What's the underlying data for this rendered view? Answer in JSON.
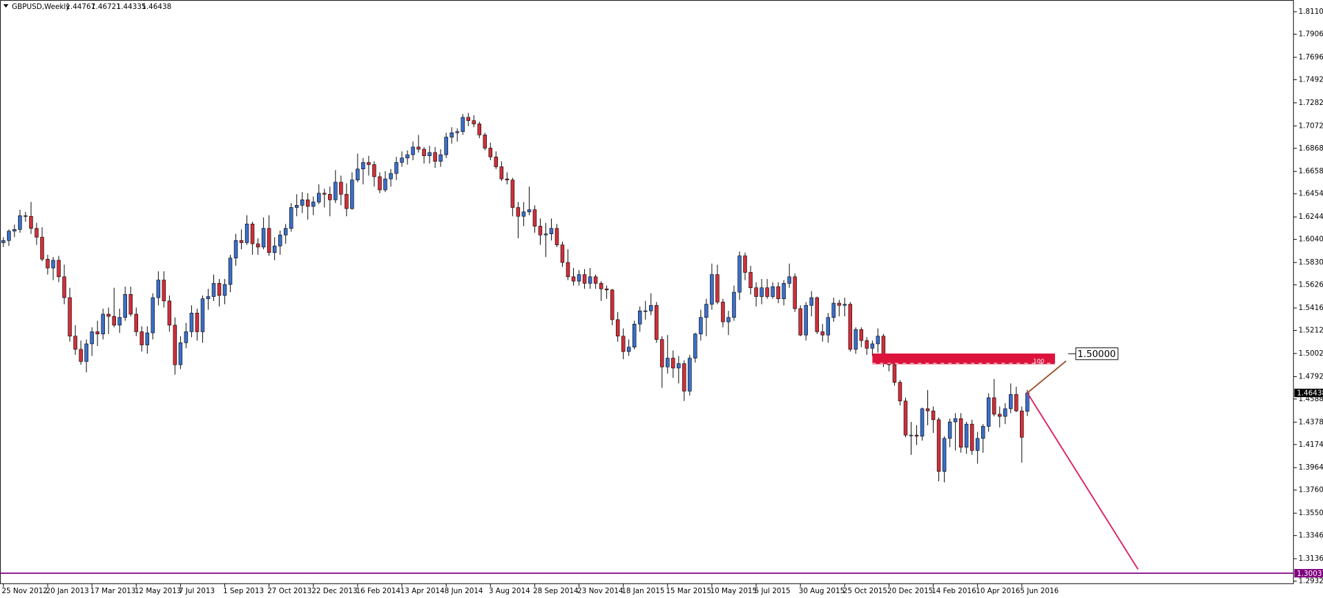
{
  "chart_data": {
    "type": "candlestick",
    "title": "GBPUSD,Weekly",
    "up_color": "#3b6fc9",
    "down_color": "#d0303a",
    "wick_color": "#000000",
    "ylim": [
      1.2909,
      1.8217
    ],
    "yticks": [
      {
        "value": 1.811,
        "label": "1.81100"
      },
      {
        "value": 1.7906,
        "label": "1.79060"
      },
      {
        "value": 1.7696,
        "label": "1.76960"
      },
      {
        "value": 1.7492,
        "label": "1.74920"
      },
      {
        "value": 1.7282,
        "label": "1.72820"
      },
      {
        "value": 1.7072,
        "label": "1.70720"
      },
      {
        "value": 1.6868,
        "label": "1.68680"
      },
      {
        "value": 1.6658,
        "label": "1.66580"
      },
      {
        "value": 1.6454,
        "label": "1.64540"
      },
      {
        "value": 1.6244,
        "label": "1.62440"
      },
      {
        "value": 1.604,
        "label": "1.60400"
      },
      {
        "value": 1.583,
        "label": "1.58300"
      },
      {
        "value": 1.5626,
        "label": "1.56260"
      },
      {
        "value": 1.5416,
        "label": "1.54160"
      },
      {
        "value": 1.5212,
        "label": "1.52120"
      },
      {
        "value": 1.5002,
        "label": "1.50020"
      },
      {
        "value": 1.4792,
        "label": "1.47920"
      },
      {
        "value": 1.4588,
        "label": "1.45880"
      },
      {
        "value": 1.4378,
        "label": "1.43780"
      },
      {
        "value": 1.4174,
        "label": "1.41740"
      },
      {
        "value": 1.3964,
        "label": "1.39640"
      },
      {
        "value": 1.376,
        "label": "1.37600"
      },
      {
        "value": 1.355,
        "label": "1.35500"
      },
      {
        "value": 1.3346,
        "label": "1.33460"
      },
      {
        "value": 1.3136,
        "label": "1.31360"
      },
      {
        "value": 1.2932,
        "label": "1.29320"
      }
    ],
    "categories": [
      "25 Nov 2012",
      null,
      null,
      null,
      null,
      null,
      null,
      null,
      "20 Jan 2013",
      null,
      null,
      null,
      null,
      null,
      null,
      null,
      "17 Mar 2013",
      null,
      null,
      null,
      null,
      null,
      null,
      null,
      "12 May 2013",
      null,
      null,
      null,
      null,
      null,
      null,
      null,
      "7 Jul 2013",
      null,
      null,
      null,
      null,
      null,
      null,
      null,
      "1 Sep 2013",
      null,
      null,
      null,
      null,
      null,
      null,
      null,
      "27 Oct 2013",
      null,
      null,
      null,
      null,
      null,
      null,
      null,
      "22 Dec 2013",
      null,
      null,
      null,
      null,
      null,
      null,
      null,
      "16 Feb 2014",
      null,
      null,
      null,
      null,
      null,
      null,
      null,
      "13 Apr 2014",
      null,
      null,
      null,
      null,
      null,
      null,
      null,
      "8 Jun 2014",
      null,
      null,
      null,
      null,
      null,
      null,
      null,
      "3 Aug 2014",
      null,
      null,
      null,
      null,
      null,
      null,
      null,
      "28 Sep 2014",
      null,
      null,
      null,
      null,
      null,
      null,
      null,
      "23 Nov 2014",
      null,
      null,
      null,
      null,
      null,
      null,
      null,
      "18 Jan 2015",
      null,
      null,
      null,
      null,
      null,
      null,
      null,
      "15 Mar 2015",
      null,
      null,
      null,
      null,
      null,
      null,
      null,
      "10 May 2015",
      null,
      null,
      null,
      null,
      null,
      null,
      null,
      "5 Jul 2015",
      null,
      null,
      null,
      null,
      null,
      null,
      null,
      "30 Aug 2015",
      null,
      null,
      null,
      null,
      null,
      null,
      null,
      "25 Oct 2015",
      null,
      null,
      null,
      null,
      null,
      null,
      null,
      "20 Dec 2015",
      null,
      null,
      null,
      null,
      null,
      null,
      null,
      "14 Feb 2016",
      null,
      null,
      null,
      null,
      null,
      null,
      null,
      "10 Apr 2016",
      null,
      null,
      null,
      null,
      null,
      null,
      null,
      "5 Jun 2016",
      null
    ],
    "ohlc": [
      [
        1.601,
        1.606,
        1.597,
        1.603
      ],
      [
        1.603,
        1.613,
        1.598,
        1.6115
      ],
      [
        1.6115,
        1.6175,
        1.606,
        1.613
      ],
      [
        1.613,
        1.631,
        1.61,
        1.6255
      ],
      [
        1.6255,
        1.629,
        1.62,
        1.625
      ],
      [
        1.625,
        1.638,
        1.609,
        1.614
      ],
      [
        1.614,
        1.619,
        1.599,
        1.606
      ],
      [
        1.606,
        1.615,
        1.584,
        1.586
      ],
      [
        1.586,
        1.59,
        1.572,
        1.578
      ],
      [
        1.578,
        1.588,
        1.567,
        1.585
      ],
      [
        1.585,
        1.589,
        1.565,
        1.57
      ],
      [
        1.57,
        1.581,
        1.545,
        1.551
      ],
      [
        1.551,
        1.56,
        1.511,
        1.516
      ],
      [
        1.516,
        1.526,
        1.499,
        1.504
      ],
      [
        1.504,
        1.512,
        1.49,
        1.493
      ],
      [
        1.493,
        1.513,
        1.483,
        1.509
      ],
      [
        1.509,
        1.524,
        1.498,
        1.52
      ],
      [
        1.52,
        1.53,
        1.507,
        1.518
      ],
      [
        1.518,
        1.541,
        1.513,
        1.536
      ],
      [
        1.536,
        1.542,
        1.518,
        1.534
      ],
      [
        1.534,
        1.56,
        1.524,
        1.526
      ],
      [
        1.526,
        1.541,
        1.519,
        1.533
      ],
      [
        1.533,
        1.561,
        1.53,
        1.554
      ],
      [
        1.554,
        1.561,
        1.534,
        1.536
      ],
      [
        1.536,
        1.542,
        1.516,
        1.52
      ],
      [
        1.52,
        1.525,
        1.502,
        1.508
      ],
      [
        1.508,
        1.525,
        1.5,
        1.519
      ],
      [
        1.519,
        1.555,
        1.513,
        1.551
      ],
      [
        1.551,
        1.575,
        1.544,
        1.567
      ],
      [
        1.567,
        1.575,
        1.542,
        1.548
      ],
      [
        1.548,
        1.553,
        1.52,
        1.526
      ],
      [
        1.526,
        1.533,
        1.481,
        1.49
      ],
      [
        1.49,
        1.516,
        1.486,
        1.51
      ],
      [
        1.51,
        1.528,
        1.505,
        1.52
      ],
      [
        1.52,
        1.544,
        1.515,
        1.537
      ],
      [
        1.537,
        1.541,
        1.512,
        1.52
      ],
      [
        1.52,
        1.553,
        1.51,
        1.55
      ],
      [
        1.55,
        1.559,
        1.54,
        1.552
      ],
      [
        1.552,
        1.572,
        1.548,
        1.564
      ],
      [
        1.564,
        1.568,
        1.543,
        1.553
      ],
      [
        1.553,
        1.568,
        1.545,
        1.563
      ],
      [
        1.563,
        1.59,
        1.556,
        1.587
      ],
      [
        1.587,
        1.609,
        1.58,
        1.603
      ],
      [
        1.603,
        1.613,
        1.595,
        1.601
      ],
      [
        1.601,
        1.626,
        1.599,
        1.618
      ],
      [
        1.618,
        1.62,
        1.59,
        1.6
      ],
      [
        1.6,
        1.605,
        1.59,
        1.597
      ],
      [
        1.597,
        1.624,
        1.595,
        1.614
      ],
      [
        1.614,
        1.626,
        1.589,
        1.592
      ],
      [
        1.592,
        1.606,
        1.585,
        1.598
      ],
      [
        1.598,
        1.612,
        1.59,
        1.608
      ],
      [
        1.608,
        1.618,
        1.6,
        1.614
      ],
      [
        1.614,
        1.637,
        1.611,
        1.633
      ],
      [
        1.633,
        1.645,
        1.625,
        1.635
      ],
      [
        1.635,
        1.647,
        1.628,
        1.64
      ],
      [
        1.64,
        1.646,
        1.622,
        1.634
      ],
      [
        1.634,
        1.643,
        1.626,
        1.638
      ],
      [
        1.638,
        1.654,
        1.636,
        1.646
      ],
      [
        1.646,
        1.65,
        1.633,
        1.645
      ],
      [
        1.645,
        1.652,
        1.625,
        1.64
      ],
      [
        1.64,
        1.667,
        1.637,
        1.656
      ],
      [
        1.656,
        1.662,
        1.635,
        1.645
      ],
      [
        1.645,
        1.655,
        1.625,
        1.632
      ],
      [
        1.632,
        1.665,
        1.631,
        1.658
      ],
      [
        1.658,
        1.682,
        1.656,
        1.668
      ],
      [
        1.668,
        1.678,
        1.654,
        1.674
      ],
      [
        1.674,
        1.68,
        1.662,
        1.672
      ],
      [
        1.672,
        1.675,
        1.652,
        1.661
      ],
      [
        1.661,
        1.665,
        1.646,
        1.649
      ],
      [
        1.649,
        1.666,
        1.647,
        1.659
      ],
      [
        1.659,
        1.668,
        1.652,
        1.664
      ],
      [
        1.664,
        1.679,
        1.658,
        1.674
      ],
      [
        1.674,
        1.684,
        1.67,
        1.678
      ],
      [
        1.678,
        1.685,
        1.672,
        1.681
      ],
      [
        1.681,
        1.693,
        1.676,
        1.688
      ],
      [
        1.688,
        1.699,
        1.683,
        1.686
      ],
      [
        1.686,
        1.688,
        1.673,
        1.68
      ],
      [
        1.68,
        1.689,
        1.673,
        1.683
      ],
      [
        1.683,
        1.688,
        1.669,
        1.675
      ],
      [
        1.675,
        1.686,
        1.67,
        1.681
      ],
      [
        1.681,
        1.701,
        1.678,
        1.697
      ],
      [
        1.697,
        1.706,
        1.691,
        1.701
      ],
      [
        1.701,
        1.705,
        1.693,
        1.702
      ],
      [
        1.702,
        1.718,
        1.699,
        1.715
      ],
      [
        1.715,
        1.719,
        1.707,
        1.712
      ],
      [
        1.712,
        1.717,
        1.706,
        1.709
      ],
      [
        1.709,
        1.711,
        1.696,
        1.699
      ],
      [
        1.699,
        1.701,
        1.685,
        1.687
      ],
      [
        1.687,
        1.692,
        1.676,
        1.679
      ],
      [
        1.679,
        1.684,
        1.668,
        1.67
      ],
      [
        1.67,
        1.675,
        1.657,
        1.659
      ],
      [
        1.659,
        1.665,
        1.654,
        1.658
      ],
      [
        1.658,
        1.66,
        1.625,
        1.633
      ],
      [
        1.633,
        1.638,
        1.605,
        1.625
      ],
      [
        1.625,
        1.638,
        1.616,
        1.629
      ],
      [
        1.629,
        1.652,
        1.626,
        1.631
      ],
      [
        1.631,
        1.635,
        1.61,
        1.616
      ],
      [
        1.616,
        1.623,
        1.599,
        1.608
      ],
      [
        1.608,
        1.619,
        1.588,
        1.609
      ],
      [
        1.609,
        1.623,
        1.603,
        1.614
      ],
      [
        1.614,
        1.618,
        1.597,
        1.599
      ],
      [
        1.599,
        1.602,
        1.579,
        1.583
      ],
      [
        1.583,
        1.595,
        1.567,
        1.57
      ],
      [
        1.57,
        1.578,
        1.562,
        1.566
      ],
      [
        1.566,
        1.576,
        1.562,
        1.572
      ],
      [
        1.572,
        1.577,
        1.559,
        1.564
      ],
      [
        1.564,
        1.578,
        1.559,
        1.57
      ],
      [
        1.57,
        1.572,
        1.559,
        1.564
      ],
      [
        1.564,
        1.566,
        1.548,
        1.559
      ],
      [
        1.559,
        1.562,
        1.55,
        1.558
      ],
      [
        1.558,
        1.559,
        1.526,
        1.531
      ],
      [
        1.531,
        1.538,
        1.511,
        1.516
      ],
      [
        1.516,
        1.523,
        1.495,
        1.502
      ],
      [
        1.502,
        1.513,
        1.498,
        1.506
      ],
      [
        1.506,
        1.53,
        1.504,
        1.527
      ],
      [
        1.527,
        1.543,
        1.52,
        1.539
      ],
      [
        1.539,
        1.548,
        1.531,
        1.539
      ],
      [
        1.539,
        1.555,
        1.535,
        1.544
      ],
      [
        1.544,
        1.547,
        1.51,
        1.513
      ],
      [
        1.513,
        1.516,
        1.469,
        1.488
      ],
      [
        1.488,
        1.517,
        1.482,
        1.496
      ],
      [
        1.496,
        1.503,
        1.478,
        1.487
      ],
      [
        1.487,
        1.498,
        1.473,
        1.491
      ],
      [
        1.491,
        1.494,
        1.457,
        1.466
      ],
      [
        1.466,
        1.499,
        1.462,
        1.496
      ],
      [
        1.496,
        1.519,
        1.492,
        1.518
      ],
      [
        1.518,
        1.54,
        1.512,
        1.533
      ],
      [
        1.533,
        1.55,
        1.516,
        1.545
      ],
      [
        1.545,
        1.582,
        1.54,
        1.572
      ],
      [
        1.572,
        1.581,
        1.545,
        1.547
      ],
      [
        1.547,
        1.55,
        1.524,
        1.529
      ],
      [
        1.529,
        1.539,
        1.517,
        1.533
      ],
      [
        1.533,
        1.562,
        1.53,
        1.556
      ],
      [
        1.556,
        1.593,
        1.549,
        1.589
      ],
      [
        1.589,
        1.592,
        1.567,
        1.574
      ],
      [
        1.574,
        1.58,
        1.554,
        1.56
      ],
      [
        1.56,
        1.565,
        1.543,
        1.552
      ],
      [
        1.552,
        1.568,
        1.545,
        1.56
      ],
      [
        1.56,
        1.568,
        1.55,
        1.552
      ],
      [
        1.552,
        1.565,
        1.55,
        1.561
      ],
      [
        1.561,
        1.565,
        1.546,
        1.55
      ],
      [
        1.55,
        1.567,
        1.544,
        1.564
      ],
      [
        1.564,
        1.582,
        1.56,
        1.57
      ],
      [
        1.57,
        1.573,
        1.538,
        1.541
      ],
      [
        1.541,
        1.544,
        1.516,
        1.517
      ],
      [
        1.517,
        1.547,
        1.512,
        1.544
      ],
      [
        1.544,
        1.557,
        1.534,
        1.551
      ],
      [
        1.551,
        1.552,
        1.518,
        1.52
      ],
      [
        1.52,
        1.527,
        1.511,
        1.517
      ],
      [
        1.517,
        1.537,
        1.51,
        1.533
      ],
      [
        1.533,
        1.551,
        1.529,
        1.546
      ],
      [
        1.546,
        1.549,
        1.534,
        1.544
      ],
      [
        1.544,
        1.551,
        1.534,
        1.545
      ],
      [
        1.545,
        1.547,
        1.502,
        1.504
      ],
      [
        1.504,
        1.524,
        1.5,
        1.522
      ],
      [
        1.522,
        1.524,
        1.506,
        1.512
      ],
      [
        1.512,
        1.515,
        1.499,
        1.505
      ],
      [
        1.505,
        1.512,
        1.498,
        1.509
      ],
      [
        1.509,
        1.523,
        1.501,
        1.516
      ],
      [
        1.516,
        1.518,
        1.488,
        1.492
      ],
      [
        1.492,
        1.496,
        1.484,
        1.49
      ],
      [
        1.49,
        1.492,
        1.471,
        1.474
      ],
      [
        1.474,
        1.476,
        1.453,
        1.457
      ],
      [
        1.457,
        1.46,
        1.424,
        1.426
      ],
      [
        1.426,
        1.438,
        1.408,
        1.426
      ],
      [
        1.426,
        1.435,
        1.417,
        1.425
      ],
      [
        1.425,
        1.451,
        1.421,
        1.45
      ],
      [
        1.45,
        1.467,
        1.435,
        1.448
      ],
      [
        1.448,
        1.452,
        1.428,
        1.44
      ],
      [
        1.44,
        1.442,
        1.384,
        1.393
      ],
      [
        1.393,
        1.425,
        1.383,
        1.423
      ],
      [
        1.423,
        1.441,
        1.415,
        1.438
      ],
      [
        1.438,
        1.446,
        1.412,
        1.441
      ],
      [
        1.441,
        1.446,
        1.41,
        1.415
      ],
      [
        1.415,
        1.438,
        1.409,
        1.436
      ],
      [
        1.436,
        1.44,
        1.408,
        1.412
      ],
      [
        1.412,
        1.429,
        1.4,
        1.423
      ],
      [
        1.423,
        1.436,
        1.41,
        1.434
      ],
      [
        1.434,
        1.464,
        1.429,
        1.46
      ],
      [
        1.46,
        1.477,
        1.443,
        1.445
      ],
      [
        1.445,
        1.452,
        1.433,
        1.443
      ],
      [
        1.443,
        1.455,
        1.436,
        1.45
      ],
      [
        1.45,
        1.473,
        1.446,
        1.463
      ],
      [
        1.463,
        1.47,
        1.447,
        1.448
      ],
      [
        1.448,
        1.452,
        1.401,
        1.424
      ],
      [
        1.44767,
        1.46721,
        1.44335,
        1.46438
      ]
    ],
    "level": {
      "value": 1.30037,
      "color": "#800080"
    },
    "zone": {
      "x": [
        157,
        190
      ],
      "y": [
        1.4905,
        1.5002
      ],
      "label": "100",
      "color": "#dc143c"
    },
    "zone_tag": {
      "value": 1.5,
      "label": "1.50000"
    },
    "lines": [
      {
        "x": [
          185,
          192
        ],
        "y": [
          1.46438,
          1.4934
        ],
        "color": "#a0522d"
      },
      {
        "x": [
          185,
          205
        ],
        "y": [
          1.46438,
          1.3039
        ],
        "color": "#e0245e"
      }
    ]
  }
}
